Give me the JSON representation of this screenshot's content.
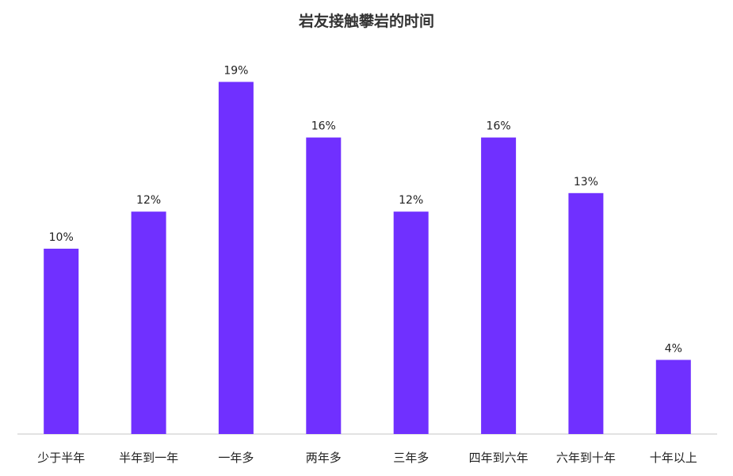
{
  "chart_data": {
    "type": "bar",
    "title": "岩友接触攀岩的时间",
    "xlabel": "",
    "ylabel": "",
    "categories": [
      "少于半年",
      "半年到一年",
      "一年多",
      "两年多",
      "三年多",
      "四年到六年",
      "六年到十年",
      "十年以上"
    ],
    "values": [
      10,
      12,
      19,
      16,
      12,
      16,
      13,
      4
    ],
    "data_labels": [
      "10%",
      "12%",
      "19%",
      "16%",
      "12%",
      "16%",
      "13%",
      "4%"
    ],
    "unit": "%",
    "ylim": [
      0,
      20
    ],
    "grid": false,
    "legend": "none",
    "bar_color": "#7030FF",
    "axis_color": "#D9D9D9"
  }
}
